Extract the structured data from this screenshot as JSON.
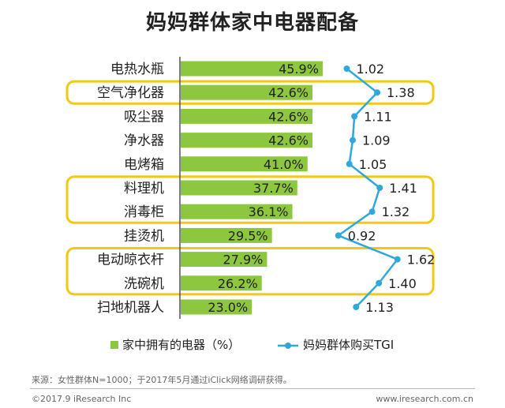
{
  "page": {
    "title": "妈妈群体家中电器配备",
    "source_note": "来源：女性群体N=1000；于2017年5月通过iClick网络调研获得。",
    "copyright": "©2017.9 iResearch Inc",
    "site": "www.iresearch.com.cn"
  },
  "chart_data": {
    "type": "bar",
    "title": "妈妈群体家中电器配备",
    "orientation": "horizontal",
    "categories": [
      "电热水瓶",
      "空气净化器",
      "吸尘器",
      "净水器",
      "电烤箱",
      "料理机",
      "消毒柜",
      "挂烫机",
      "电动晾衣杆",
      "洗碗机",
      "扫地机器人"
    ],
    "series": [
      {
        "name": "家中拥有的电器（%）",
        "type": "bar",
        "values": [
          45.9,
          42.6,
          42.6,
          42.6,
          41.0,
          37.7,
          36.1,
          29.5,
          27.9,
          26.2,
          23.0
        ],
        "labels": [
          "45.9%",
          "42.6%",
          "42.6%",
          "42.6%",
          "41.0%",
          "37.7%",
          "36.1%",
          "29.5%",
          "27.9%",
          "26.2%",
          "23.0%"
        ]
      },
      {
        "name": "妈妈群体购买TGI",
        "type": "line",
        "values": [
          1.02,
          1.38,
          1.11,
          1.09,
          1.05,
          1.41,
          1.32,
          0.92,
          1.62,
          1.4,
          1.13
        ],
        "labels": [
          "1.02",
          "1.38",
          "1.11",
          "1.09",
          "1.05",
          "1.41",
          "1.32",
          "0.92",
          "1.62",
          "1.40",
          "1.13"
        ]
      }
    ],
    "highlight_groups": [
      [
        "空气净化器"
      ],
      [
        "料理机",
        "消毒柜"
      ],
      [
        "电动晾衣杆",
        "洗碗机"
      ]
    ],
    "legend_placement": "bottom-left",
    "grid": false,
    "colors": {
      "bar": "#8dc63f",
      "line": "#2fa8db",
      "highlight": "#f2c811",
      "axis": "#555555"
    }
  }
}
